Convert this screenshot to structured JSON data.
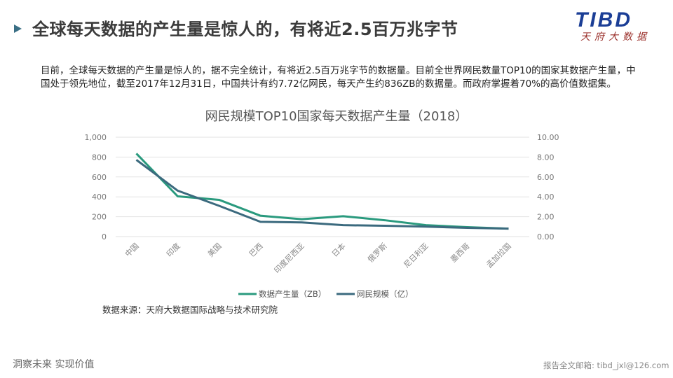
{
  "header": {
    "title": "全球每天数据的产生量是惊人的，有将近2.5百万兆字节",
    "logo_text": "TIBD",
    "logo_subtitle": "天府大数据"
  },
  "paragraph": "目前，全球每天数据的产生量是惊人的，据不完全统计，有将近2.5百万兆字节的数据量。目前全世界网民数量TOP10的国家其数据产生量，中国处于领先地位，截至2017年12月31日，中国共计有约7.72亿网民，每天产生约836ZB的数据量。而政府掌握着70%的高价值数据集。",
  "chart_data": {
    "type": "line",
    "title": "网民规模TOP10国家每天数据产生量（2018）",
    "categories": [
      "中国",
      "印度",
      "美国",
      "巴西",
      "印度尼西亚",
      "日本",
      "俄罗斯",
      "尼日利亚",
      "墨西哥",
      "孟加拉国"
    ],
    "series": [
      {
        "name": "数据产生量（ZB）",
        "axis": "left",
        "color": "#2a9a7e",
        "values": [
          836,
          405,
          370,
          210,
          175,
          205,
          165,
          115,
          95,
          80
        ]
      },
      {
        "name": "网民规模（亿）",
        "axis": "right",
        "color": "#3b6a7e",
        "values": [
          7.72,
          4.62,
          3.1,
          1.49,
          1.43,
          1.15,
          1.09,
          1.0,
          0.88,
          0.8
        ]
      }
    ],
    "left_axis": {
      "ticks": [
        "0",
        "200",
        "400",
        "600",
        "800",
        "1,000"
      ],
      "ylim": [
        0,
        1000
      ]
    },
    "right_axis": {
      "ticks": [
        "0.00",
        "2.00",
        "4.00",
        "6.00",
        "8.00",
        "10.00"
      ],
      "ylim": [
        0,
        10
      ]
    },
    "grid": true,
    "legend_position": "bottom"
  },
  "source": "数据来源：天府大数据国际战略与技术研究院",
  "footer": {
    "left": "洞察未来 实现价值",
    "right": "报告全文邮箱: tibd_jxl@126.com"
  }
}
